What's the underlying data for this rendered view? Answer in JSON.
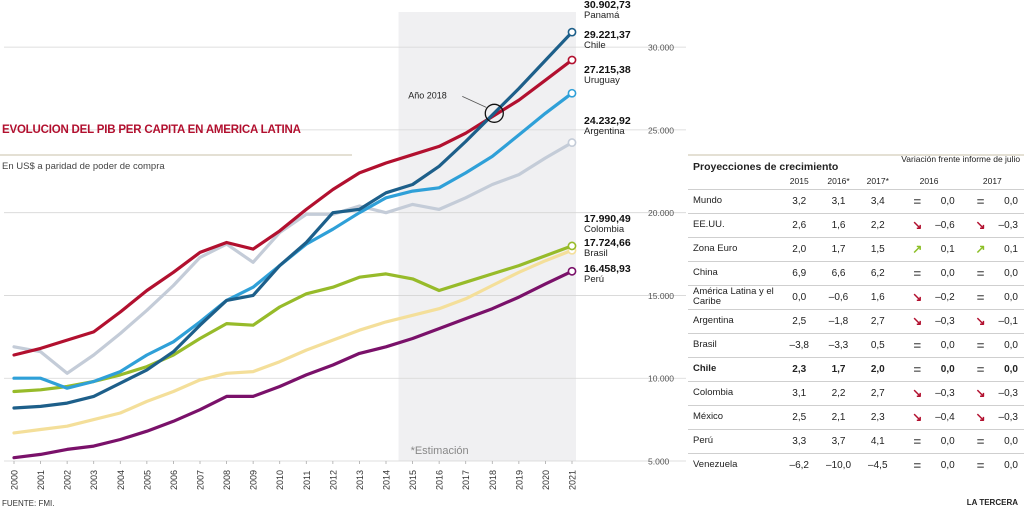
{
  "title": "EVOLUCION DEL PIB PER CAPITA EN AMERICA LATINA",
  "subtitle": "En US$ a paridad de poder de compra",
  "source": "FUENTE: FMI.",
  "brand": "LA TERCERA",
  "colors": {
    "panama": "#1d5f8a",
    "chile": "#b2102f",
    "uruguay": "#2fa0d8",
    "argentina": "#c4ccd8",
    "colombia": "#97bb2a",
    "brasil": "#f4df9a",
    "peru": "#7a116a",
    "estimation_shade": "#f0f0f2",
    "title_red": "#b2102f"
  },
  "chart_data": {
    "type": "line",
    "ylim": [
      5000,
      32000
    ],
    "y_ticks": [
      "5.000",
      "10.000",
      "15.000",
      "20.000",
      "25.000",
      "30.000"
    ],
    "x": [
      "2000",
      "2001",
      "2002",
      "2003",
      "2004",
      "2005",
      "2006",
      "2007",
      "2008",
      "2009",
      "2010",
      "2011",
      "2012",
      "2013",
      "2014",
      "2015",
      "2016",
      "2017",
      "2018",
      "2019",
      "2020",
      "2021"
    ],
    "estimation_label": "*Estimación",
    "estimation_from": "2015",
    "annotation": {
      "label": "Año 2018",
      "x": "2018",
      "y": 26000
    },
    "series": [
      {
        "name": "Panamá",
        "key": "panama",
        "end_value": "30.902,73",
        "values": [
          8200,
          8300,
          8500,
          8900,
          9700,
          10500,
          11600,
          13200,
          14700,
          15000,
          16800,
          18200,
          20000,
          20200,
          21200,
          21700,
          22800,
          24300,
          25900,
          27500,
          29200,
          30903
        ]
      },
      {
        "name": "Chile",
        "key": "chile",
        "end_value": "29.221,37",
        "values": [
          11400,
          11800,
          12300,
          12800,
          14000,
          15300,
          16400,
          17600,
          18200,
          17800,
          18900,
          20200,
          21400,
          22400,
          23000,
          23500,
          24000,
          24800,
          25800,
          26800,
          28000,
          29221
        ]
      },
      {
        "name": "Uruguay",
        "key": "uruguay",
        "end_value": "27.215,38",
        "values": [
          10000,
          10000,
          9400,
          9800,
          10400,
          11400,
          12200,
          13400,
          14700,
          15500,
          16800,
          18100,
          19000,
          20000,
          20900,
          21300,
          21500,
          22400,
          23400,
          24700,
          26000,
          27215
        ]
      },
      {
        "name": "Argentina",
        "key": "argentina",
        "end_value": "24.232,92",
        "values": [
          11900,
          11600,
          10300,
          11400,
          12700,
          14100,
          15600,
          17300,
          18100,
          17000,
          18800,
          19900,
          19900,
          20400,
          20000,
          20500,
          20200,
          20900,
          21700,
          22300,
          23300,
          24233
        ]
      },
      {
        "name": "Colombia",
        "key": "colombia",
        "end_value": "17.990,49",
        "values": [
          9200,
          9300,
          9500,
          9800,
          10200,
          10700,
          11400,
          12400,
          13300,
          13200,
          14300,
          15100,
          15500,
          16100,
          16300,
          16000,
          15300,
          15800,
          16300,
          16800,
          17400,
          17990
        ]
      },
      {
        "name": "Brasil",
        "key": "brasil",
        "end_value": "17.724,66",
        "values": [
          6700,
          6900,
          7100,
          7500,
          7900,
          8600,
          9200,
          9900,
          10300,
          10400,
          11000,
          11700,
          12300,
          12900,
          13400,
          13800,
          14200,
          14800,
          15600,
          16400,
          17100,
          17725
        ]
      },
      {
        "name": "Perú",
        "key": "peru",
        "end_value": "16.458,93",
        "values": [
          5200,
          5400,
          5700,
          5900,
          6300,
          6800,
          7400,
          8100,
          8900,
          8900,
          9500,
          10200,
          10800,
          11500,
          11900,
          12400,
          13000,
          13600,
          14200,
          14900,
          15700,
          16459
        ]
      }
    ]
  },
  "projections": {
    "title": "Proyecciones de crecimiento",
    "variation_title": "Variación frente informe de julio",
    "columns": [
      "2015",
      "2016*",
      "2017*"
    ],
    "variation_columns": [
      "2016",
      "2017"
    ],
    "rows": [
      {
        "country": "Mundo",
        "v2015": "3,2",
        "v2016": "3,1",
        "v2017": "3,4",
        "icon16": "equals-icon",
        "var16": "0,0",
        "icon17": "equals-icon",
        "var17": "0,0",
        "bold": false
      },
      {
        "country": "EE.UU.",
        "v2015": "2,6",
        "v2016": "1,6",
        "v2017": "2,2",
        "icon16": "arrow-down-icon",
        "var16": "–0,6",
        "icon17": "arrow-down-icon",
        "var17": "–0,3",
        "bold": false
      },
      {
        "country": "Zona Euro",
        "v2015": "2,0",
        "v2016": "1,7",
        "v2017": "1,5",
        "icon16": "arrow-up-icon",
        "var16": "0,1",
        "icon17": "arrow-up-icon",
        "var17": "0,1",
        "bold": false
      },
      {
        "country": "China",
        "v2015": "6,9",
        "v2016": "6,6",
        "v2017": "6,2",
        "icon16": "equals-icon",
        "var16": "0,0",
        "icon17": "equals-icon",
        "var17": "0,0",
        "bold": false
      },
      {
        "country": "América Latina y el Caribe",
        "v2015": "0,0",
        "v2016": "–0,6",
        "v2017": "1,6",
        "icon16": "arrow-down-icon",
        "var16": "–0,2",
        "icon17": "equals-icon",
        "var17": "0,0",
        "bold": false
      },
      {
        "country": "Argentina",
        "v2015": "2,5",
        "v2016": "–1,8",
        "v2017": "2,7",
        "icon16": "arrow-down-icon",
        "var16": "–0,3",
        "icon17": "arrow-down-icon",
        "var17": "–0,1",
        "bold": false
      },
      {
        "country": "Brasil",
        "v2015": "–3,8",
        "v2016": "–3,3",
        "v2017": "0,5",
        "icon16": "equals-icon",
        "var16": "0,0",
        "icon17": "equals-icon",
        "var17": "0,0",
        "bold": false
      },
      {
        "country": "Chile",
        "v2015": "2,3",
        "v2016": "1,7",
        "v2017": "2,0",
        "icon16": "equals-icon",
        "var16": "0,0",
        "icon17": "equals-icon",
        "var17": "0,0",
        "bold": true
      },
      {
        "country": "Colombia",
        "v2015": "3,1",
        "v2016": "2,2",
        "v2017": "2,7",
        "icon16": "arrow-down-icon",
        "var16": "–0,3",
        "icon17": "arrow-down-icon",
        "var17": "–0,3",
        "bold": false
      },
      {
        "country": "México",
        "v2015": "2,5",
        "v2016": "2,1",
        "v2017": "2,3",
        "icon16": "arrow-down-icon",
        "var16": "–0,4",
        "icon17": "arrow-down-icon",
        "var17": "–0,3",
        "bold": false
      },
      {
        "country": "Perú",
        "v2015": "3,3",
        "v2016": "3,7",
        "v2017": "4,1",
        "icon16": "equals-icon",
        "var16": "0,0",
        "icon17": "equals-icon",
        "var17": "0,0",
        "bold": false
      },
      {
        "country": "Venezuela",
        "v2015": "–6,2",
        "v2016": "–10,0",
        "v2017": "–4,5",
        "icon16": "equals-icon",
        "var16": "0,0",
        "icon17": "equals-icon",
        "var17": "0,0",
        "bold": false
      }
    ]
  }
}
